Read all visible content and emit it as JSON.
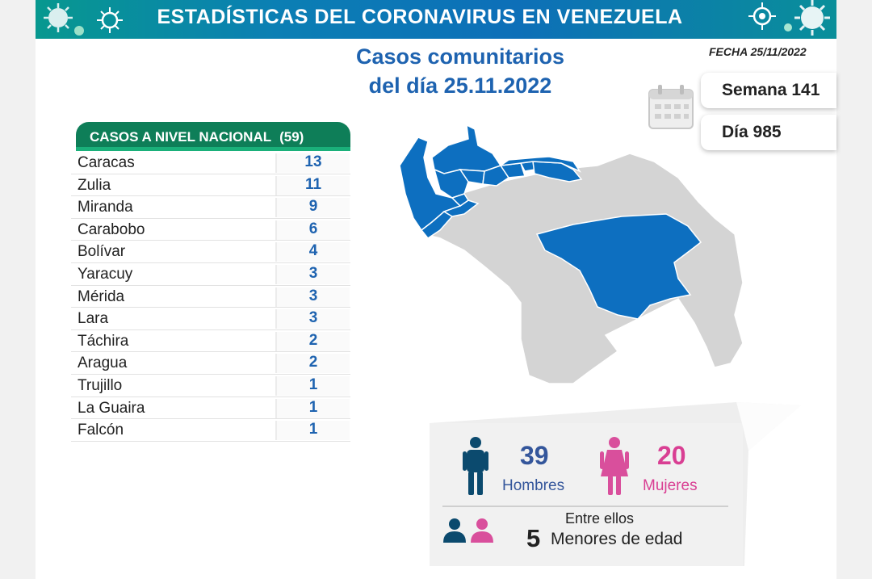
{
  "header": {
    "title": "ESTADÍSTICAS DEL CORONAVIRUS EN VENEZUELA"
  },
  "subtitle": {
    "line1": "Casos comunitarios",
    "line2": "del día 25.11.2022"
  },
  "fecha": "FECHA 25/11/2022",
  "semana": "Semana 141",
  "dia": "Día 985",
  "table": {
    "title": "CASOS A NIVEL NACIONAL",
    "total": "(59)",
    "rows": [
      {
        "name": "Caracas",
        "value": "13"
      },
      {
        "name": "Zulia",
        "value": "11"
      },
      {
        "name": "Miranda",
        "value": "9"
      },
      {
        "name": "Carabobo",
        "value": "6"
      },
      {
        "name": "Bolívar",
        "value": "4"
      },
      {
        "name": "Yaracuy",
        "value": "3"
      },
      {
        "name": "Mérida",
        "value": "3"
      },
      {
        "name": "Lara",
        "value": "3"
      },
      {
        "name": "Táchira",
        "value": "2"
      },
      {
        "name": "Aragua",
        "value": "2"
      },
      {
        "name": "Trujillo",
        "value": "1"
      },
      {
        "name": "La Guaira",
        "value": "1"
      },
      {
        "name": "Falcón",
        "value": "1"
      }
    ]
  },
  "stats": {
    "men_count": "39",
    "men_label": "Hombres",
    "women_count": "20",
    "women_label": "Mujeres",
    "entre": "Entre ellos",
    "minors_count": "5",
    "minors_label": "Menores de edad"
  },
  "colors": {
    "highlight_state": "#0d6fc0",
    "other_state": "#d4d4d4",
    "men": "#0b4a6e",
    "women": "#d94f9c",
    "men_text": "#34569b",
    "women_text": "#d93f93",
    "header_green": "#0e7e58"
  },
  "icons": [
    "virus-icon",
    "calendar-icon",
    "man-icon",
    "woman-icon",
    "people-icon"
  ]
}
